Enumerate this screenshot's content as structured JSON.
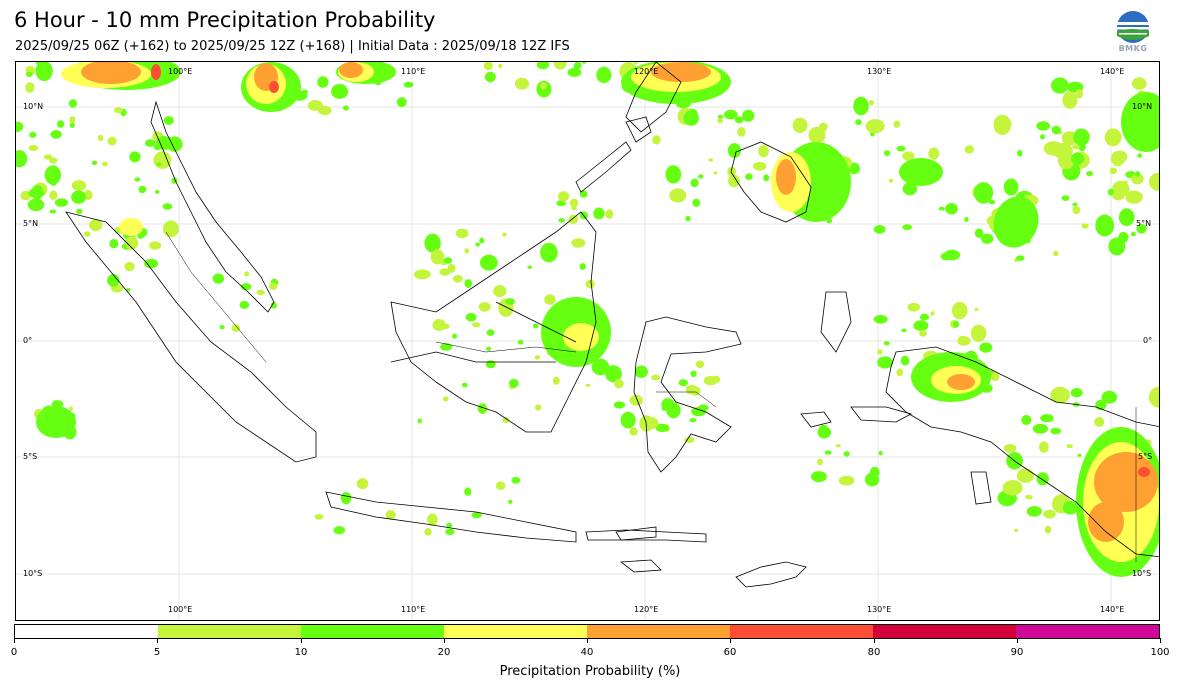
{
  "header": {
    "title": "6 Hour - 10 mm Precipitation Probability",
    "subtitle": "2025/09/25 06Z (+162) to 2025/09/25 12Z (+168) | Initial Data : 2025/09/18 12Z IFS",
    "logo_name": "BMKG",
    "logo_icon": "bmkg-logo-icon"
  },
  "map": {
    "region": "Indonesia",
    "lon_range": [
      93,
      142
    ],
    "lat_range": [
      -12,
      12
    ],
    "lon_ticks_top": [
      "100°E",
      "110°E",
      "120°E",
      "130°E",
      "140°E"
    ],
    "lon_ticks_bottom": [
      "100°E",
      "110°E",
      "120°E",
      "130°E",
      "140°E"
    ],
    "lat_ticks_left": [
      "10°N",
      "5°N",
      "0°",
      "5°S",
      "10°S"
    ],
    "lat_ticks_right": [
      "10°N",
      "5°N",
      "0°",
      "5°S",
      "10°S"
    ],
    "colors": {
      "5-10": "#c5f43c",
      "10-20": "#66ff12",
      "20-40": "#ffff55",
      "40-60": "#ffa033",
      "60-80": "#ff4e33",
      "80-90": "#d4003c",
      "90-100": "#d00898"
    }
  },
  "chart_data": {
    "type": "heatmap",
    "title": "6 Hour - 10 mm Precipitation Probability",
    "subtitle": "2025/09/25 06Z (+162) to 2025/09/25 12Z (+168) | Initial Data : 2025/09/18 12Z IFS",
    "colorbar_label": "Precipitation Probability (%)",
    "colorbar_ticks": [
      0,
      5,
      10,
      20,
      40,
      60,
      80,
      90,
      100
    ],
    "colorbar_tick_labels": [
      "0",
      "5",
      "10",
      "20",
      "40",
      "60",
      "80",
      "90",
      "100"
    ],
    "bins": [
      {
        "range": [
          0,
          5
        ],
        "color": "#ffffff"
      },
      {
        "range": [
          5,
          10
        ],
        "color": "#c5f43c"
      },
      {
        "range": [
          10,
          20
        ],
        "color": "#66ff12"
      },
      {
        "range": [
          20,
          40
        ],
        "color": "#ffff55"
      },
      {
        "range": [
          40,
          60
        ],
        "color": "#ffa033"
      },
      {
        "range": [
          60,
          80
        ],
        "color": "#ff4e33"
      },
      {
        "range": [
          80,
          90
        ],
        "color": "#d4003c"
      },
      {
        "range": [
          90,
          100
        ],
        "color": "#d00898"
      }
    ],
    "grid": true
  }
}
